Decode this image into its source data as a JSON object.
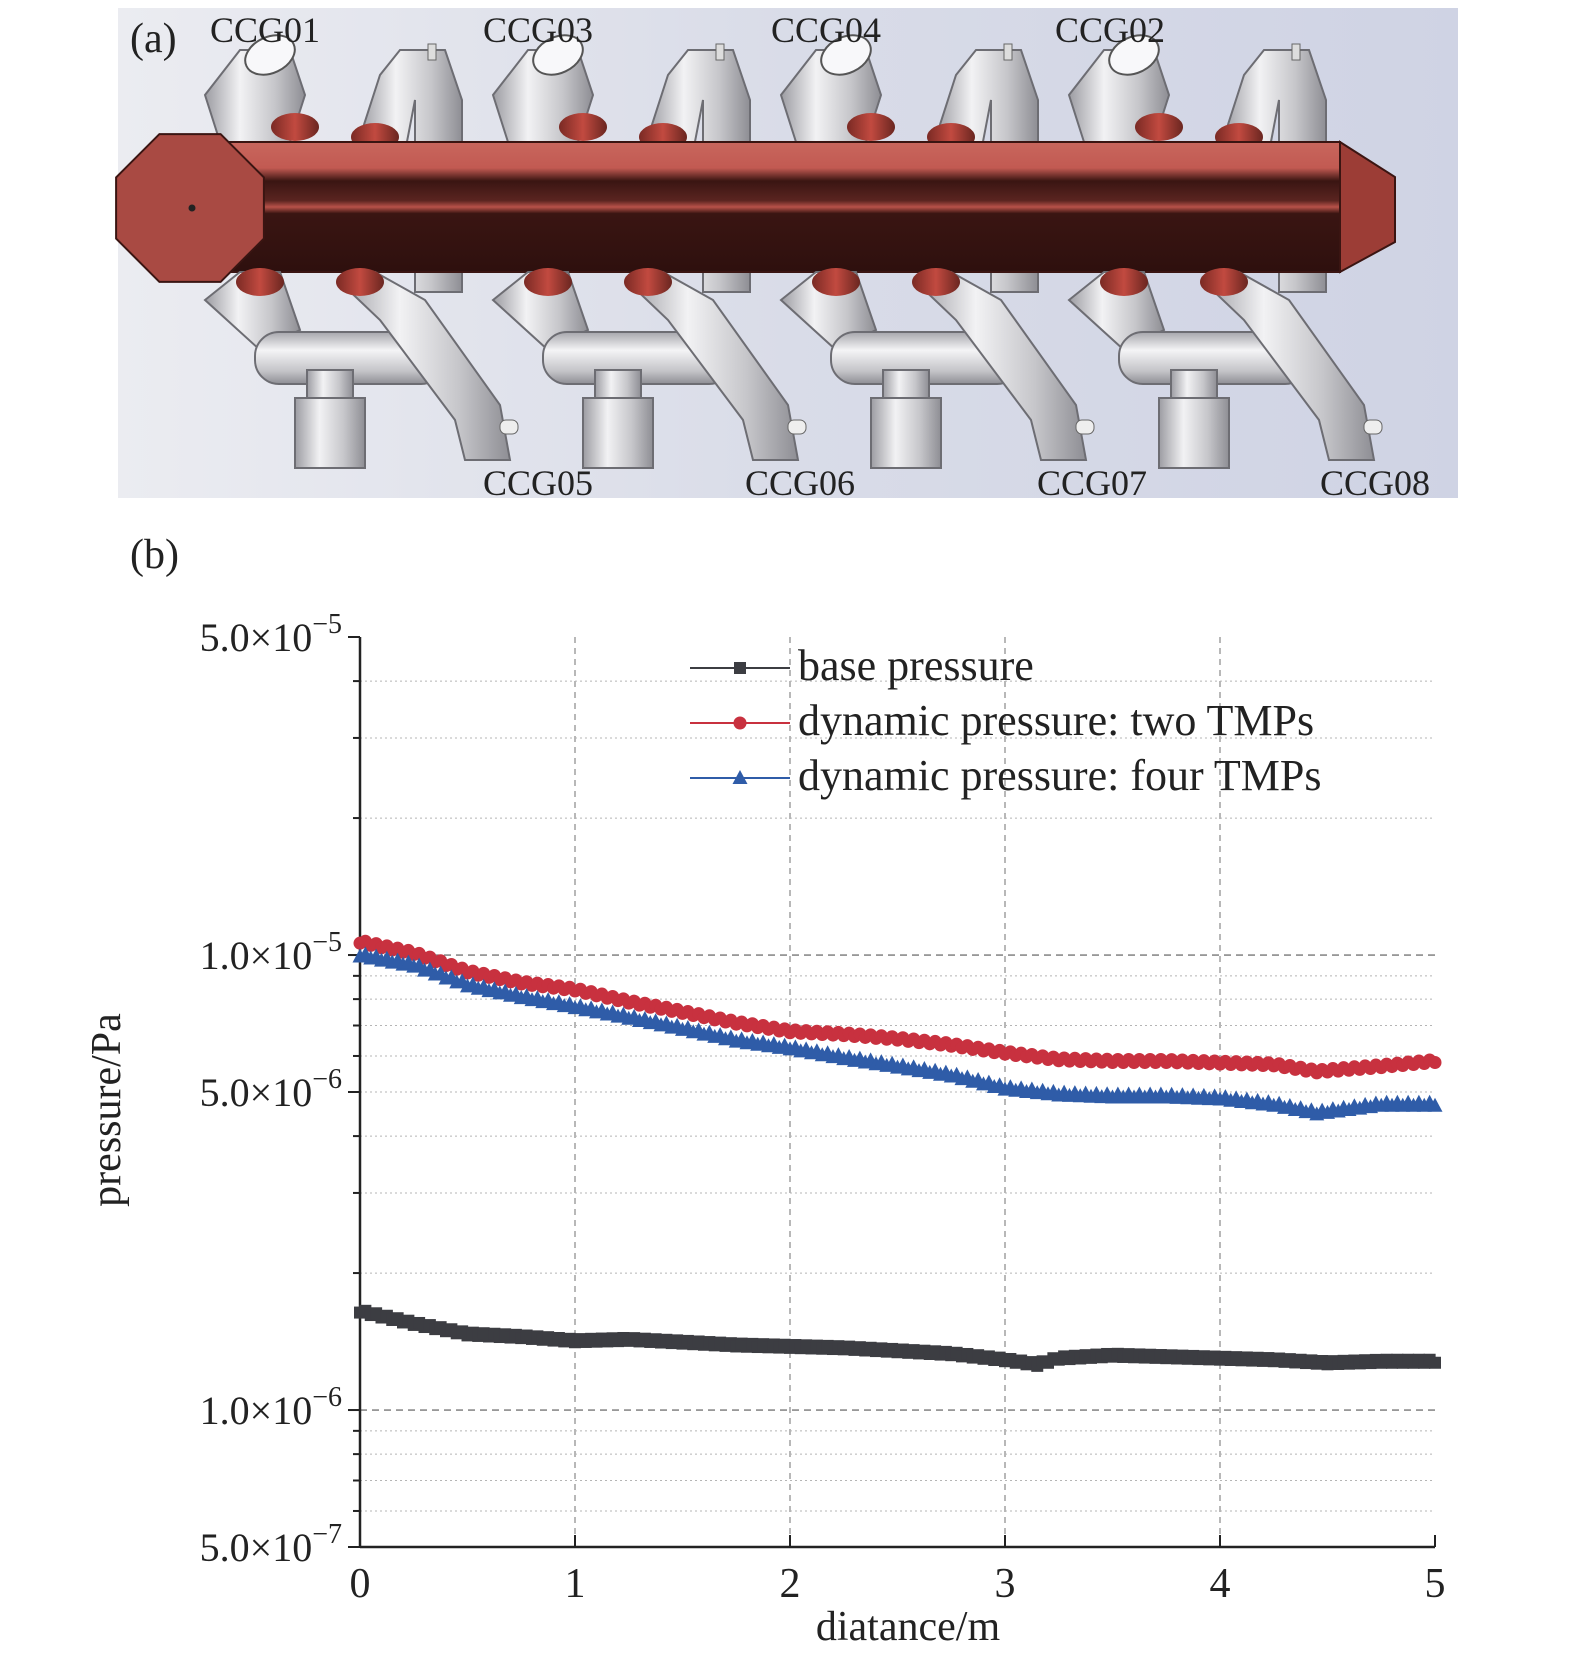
{
  "panel_a": {
    "label": "(a)",
    "gauges_top": [
      "CCG01",
      "CCG03",
      "CCG04",
      "CCG02"
    ],
    "gauges_bottom": [
      "CCG05",
      "CCG06",
      "CCG07",
      "CCG08"
    ],
    "colors": {
      "chamber": "#c25a52",
      "chamber_dark": "#3a1512",
      "pipe": "#cfcfd2",
      "background": "#dde0ec"
    }
  },
  "panel_b": {
    "label": "(b)"
  },
  "chart_data": {
    "type": "line",
    "xlabel": "diatance/m",
    "ylabel": "pressure/Pa",
    "xlim": [
      0,
      5
    ],
    "ylim": [
      5e-07,
      5e-05
    ],
    "y_scale": "log",
    "x_ticks": [
      0,
      1,
      2,
      3,
      4,
      5
    ],
    "x_tick_labels": [
      "0",
      "1",
      "2",
      "3",
      "4",
      "5"
    ],
    "y_tick_labels": [
      {
        "value": 5e-05,
        "mantissa": "5.0×10",
        "exp": "−5"
      },
      {
        "value": 1e-05,
        "mantissa": "1.0×10",
        "exp": "−5"
      },
      {
        "value": 5e-06,
        "mantissa": "5.0×10",
        "exp": "−6"
      },
      {
        "value": 1e-06,
        "mantissa": "1.0×10",
        "exp": "−6"
      },
      {
        "value": 5e-07,
        "mantissa": "5.0×10",
        "exp": "−7"
      }
    ],
    "grid": true,
    "legend_position": "top-right",
    "series": [
      {
        "name": "base pressure",
        "color": "#3c3d42",
        "marker": "square",
        "x": [
          0.0,
          0.25,
          0.5,
          0.75,
          1.0,
          1.25,
          1.5,
          1.75,
          2.0,
          2.25,
          2.5,
          2.75,
          3.0,
          3.15,
          3.25,
          3.5,
          3.75,
          4.0,
          4.25,
          4.5,
          4.75,
          5.0
        ],
        "y": [
          1.65e-06,
          1.55e-06,
          1.47e-06,
          1.45e-06,
          1.42e-06,
          1.43e-06,
          1.41e-06,
          1.39e-06,
          1.38e-06,
          1.37e-06,
          1.35e-06,
          1.33e-06,
          1.29e-06,
          1.26e-06,
          1.3e-06,
          1.32e-06,
          1.31e-06,
          1.3e-06,
          1.29e-06,
          1.27e-06,
          1.28e-06,
          1.28e-06
        ]
      },
      {
        "name": "dynamic pressure: two TMPs",
        "color": "#c8313f",
        "marker": "circle",
        "x": [
          0.0,
          0.25,
          0.5,
          0.75,
          1.0,
          1.25,
          1.5,
          1.75,
          2.0,
          2.25,
          2.5,
          2.75,
          3.0,
          3.25,
          3.5,
          3.75,
          4.0,
          4.25,
          4.45,
          4.75,
          5.0
        ],
        "y": [
          1.07e-05,
          1.01e-05,
          9.2e-06,
          8.7e-06,
          8.4e-06,
          7.9e-06,
          7.5e-06,
          7.1e-06,
          6.8e-06,
          6.7e-06,
          6.55e-06,
          6.35e-06,
          6.1e-06,
          5.9e-06,
          5.85e-06,
          5.85e-06,
          5.8e-06,
          5.75e-06,
          5.55e-06,
          5.7e-06,
          5.85e-06
        ]
      },
      {
        "name": "dynamic pressure: four TMPs",
        "color": "#2f5ca8",
        "marker": "triangle",
        "x": [
          0.0,
          0.25,
          0.5,
          0.75,
          1.0,
          1.25,
          1.5,
          1.75,
          2.0,
          2.25,
          2.5,
          2.75,
          3.0,
          3.25,
          3.5,
          3.75,
          4.0,
          4.25,
          4.45,
          4.75,
          5.0
        ],
        "y": [
          1e-05,
          9.5e-06,
          8.6e-06,
          8.1e-06,
          7.7e-06,
          7.3e-06,
          6.9e-06,
          6.5e-06,
          6.25e-06,
          5.95e-06,
          5.7e-06,
          5.45e-06,
          5.1e-06,
          4.95e-06,
          4.9e-06,
          4.9e-06,
          4.85e-06,
          4.7e-06,
          4.5e-06,
          4.7e-06,
          4.7e-06
        ]
      }
    ]
  }
}
